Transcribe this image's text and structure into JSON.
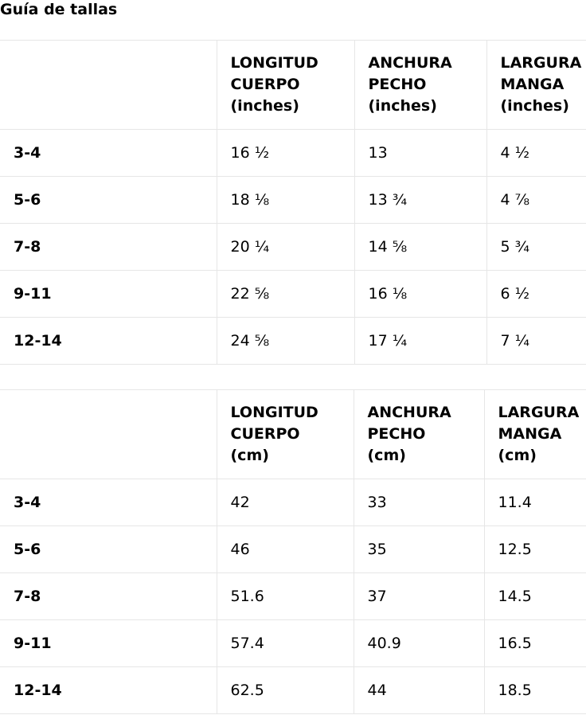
{
  "title": "Guía de tallas",
  "tables": [
    {
      "unit": "inches",
      "headers": [
        "",
        [
          "LONGITUD",
          "CUERPO",
          "(inches)"
        ],
        [
          "ANCHURA",
          "PECHO",
          "(inches)"
        ],
        [
          "LARGURA",
          "MANGA",
          "(inches)"
        ]
      ],
      "rows": [
        [
          "3-4",
          "16 ½",
          "13",
          "4 ½"
        ],
        [
          "5-6",
          "18 ⅛",
          "13 ¾",
          "4 ⅞"
        ],
        [
          "7-8",
          "20 ¼",
          "14 ⅝",
          "5 ¾"
        ],
        [
          "9-11",
          "22 ⅝",
          "16 ⅛",
          "6 ½"
        ],
        [
          "12-14",
          "24 ⅝",
          "17 ¼",
          "7 ¼"
        ]
      ]
    },
    {
      "unit": "cm",
      "headers": [
        "",
        [
          "LONGITUD",
          "CUERPO",
          "(cm)"
        ],
        [
          "ANCHURA",
          "PECHO",
          "(cm)"
        ],
        [
          "LARGURA",
          "MANGA",
          "(cm)"
        ]
      ],
      "rows": [
        [
          "3-4",
          "42",
          "33",
          "11.4"
        ],
        [
          "5-6",
          "46",
          "35",
          "12.5"
        ],
        [
          "7-8",
          "51.6",
          "37",
          "14.5"
        ],
        [
          "9-11",
          "57.4",
          "40.9",
          "16.5"
        ],
        [
          "12-14",
          "62.5",
          "44",
          "18.5"
        ]
      ]
    }
  ]
}
